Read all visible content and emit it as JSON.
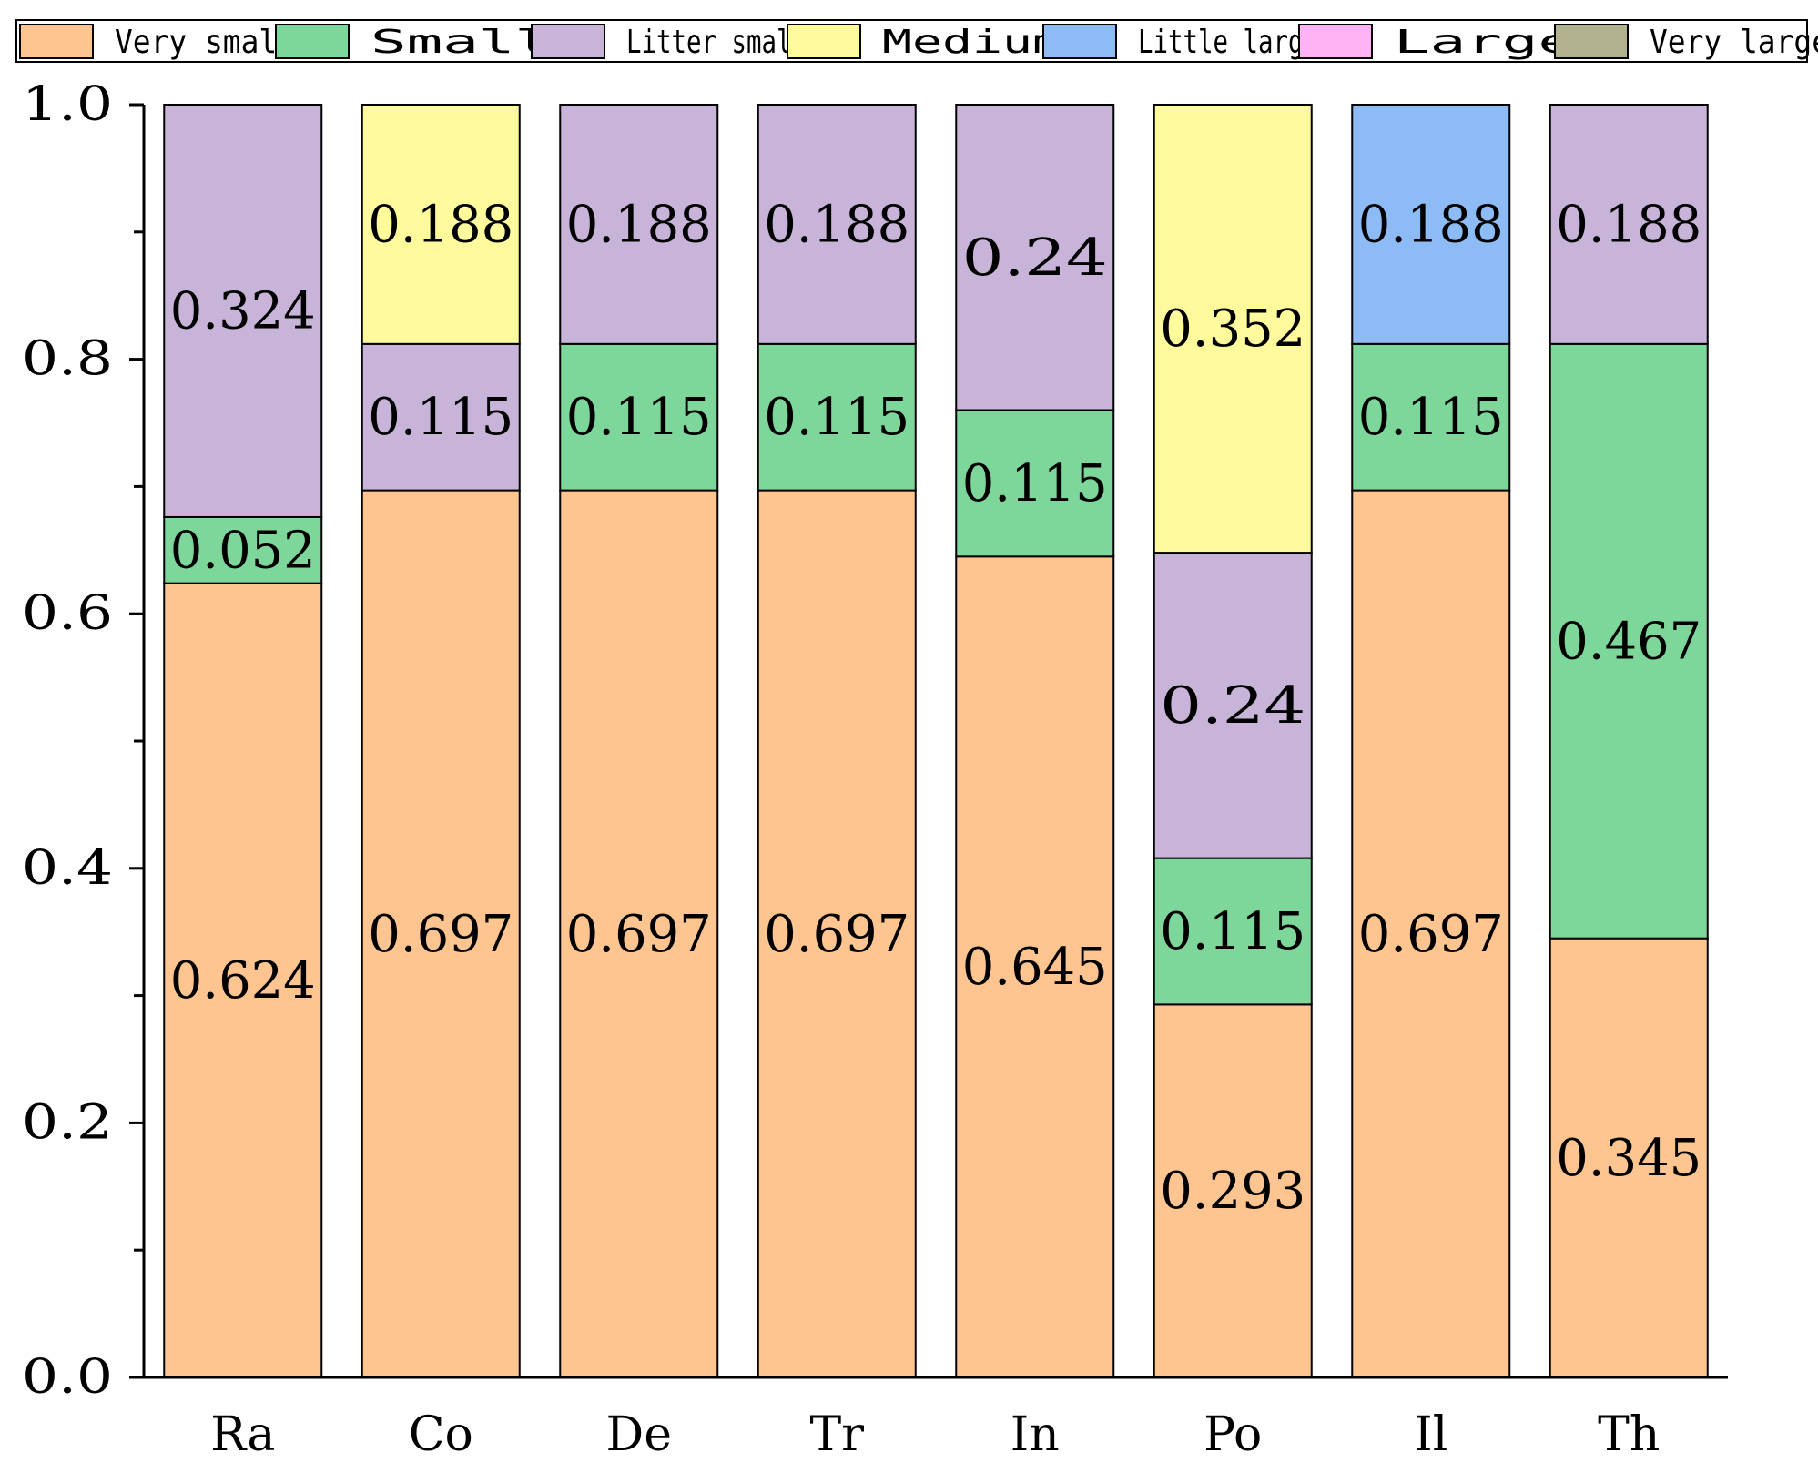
{
  "chart_data": {
    "type": "bar",
    "stacked": true,
    "categories": [
      "Ra",
      "Co",
      "De",
      "Tr",
      "In",
      "Po",
      "Il",
      "Th"
    ],
    "ylim": [
      0,
      1.0
    ],
    "yticks": [
      "0.0",
      "0.2",
      "0.4",
      "0.6",
      "0.8",
      "1.0"
    ],
    "legend_position": "top",
    "series": [
      {
        "name": "Very small",
        "color": "#FFC590",
        "values": [
          0.624,
          0.697,
          0.697,
          0.697,
          0.645,
          0.293,
          0.697,
          0.345
        ],
        "labels": [
          "0.624",
          "0.697",
          "0.697",
          "0.697",
          "0.645",
          "0.293",
          "0.697",
          "0.345"
        ]
      },
      {
        "name": "Small",
        "color": "#7ED79A",
        "values": [
          0.052,
          0,
          0.115,
          0.115,
          0.115,
          0.115,
          0.115,
          0.467
        ],
        "labels": [
          "0.052",
          "",
          "0.115",
          "0.115",
          "0.115",
          "0.115",
          "0.115",
          "0.467"
        ]
      },
      {
        "name": "Litter small",
        "color": "#C8B3D9",
        "values": [
          0.324,
          0.115,
          0.188,
          0.188,
          0.24,
          0.24,
          0,
          0.188
        ],
        "labels": [
          "0.324",
          "0.115",
          "0.188",
          "0.188",
          "0.24",
          "0.24",
          "",
          "0.188"
        ]
      },
      {
        "name": "Medium",
        "color": "#FFFB9C",
        "values": [
          0,
          0.188,
          0,
          0,
          0,
          0.352,
          0,
          0
        ],
        "labels": [
          "",
          "0.188",
          "",
          "",
          "",
          "0.352",
          "",
          ""
        ]
      },
      {
        "name": "Little large",
        "color": "#8DBBF5",
        "values": [
          0,
          0,
          0,
          0,
          0,
          0,
          0.188,
          0
        ],
        "labels": [
          "",
          "",
          "",
          "",
          "",
          "",
          "0.188",
          ""
        ]
      },
      {
        "name": "Large",
        "color": "#FFB3F5",
        "values": [
          0,
          0,
          0,
          0,
          0,
          0,
          0,
          0
        ],
        "labels": [
          "",
          "",
          "",
          "",
          "",
          "",
          "",
          ""
        ]
      },
      {
        "name": "Very large",
        "color": "#B1B390",
        "values": [
          0,
          0,
          0,
          0,
          0,
          0,
          0,
          0
        ],
        "labels": [
          "",
          "",
          "",
          "",
          "",
          "",
          "",
          ""
        ]
      }
    ]
  }
}
